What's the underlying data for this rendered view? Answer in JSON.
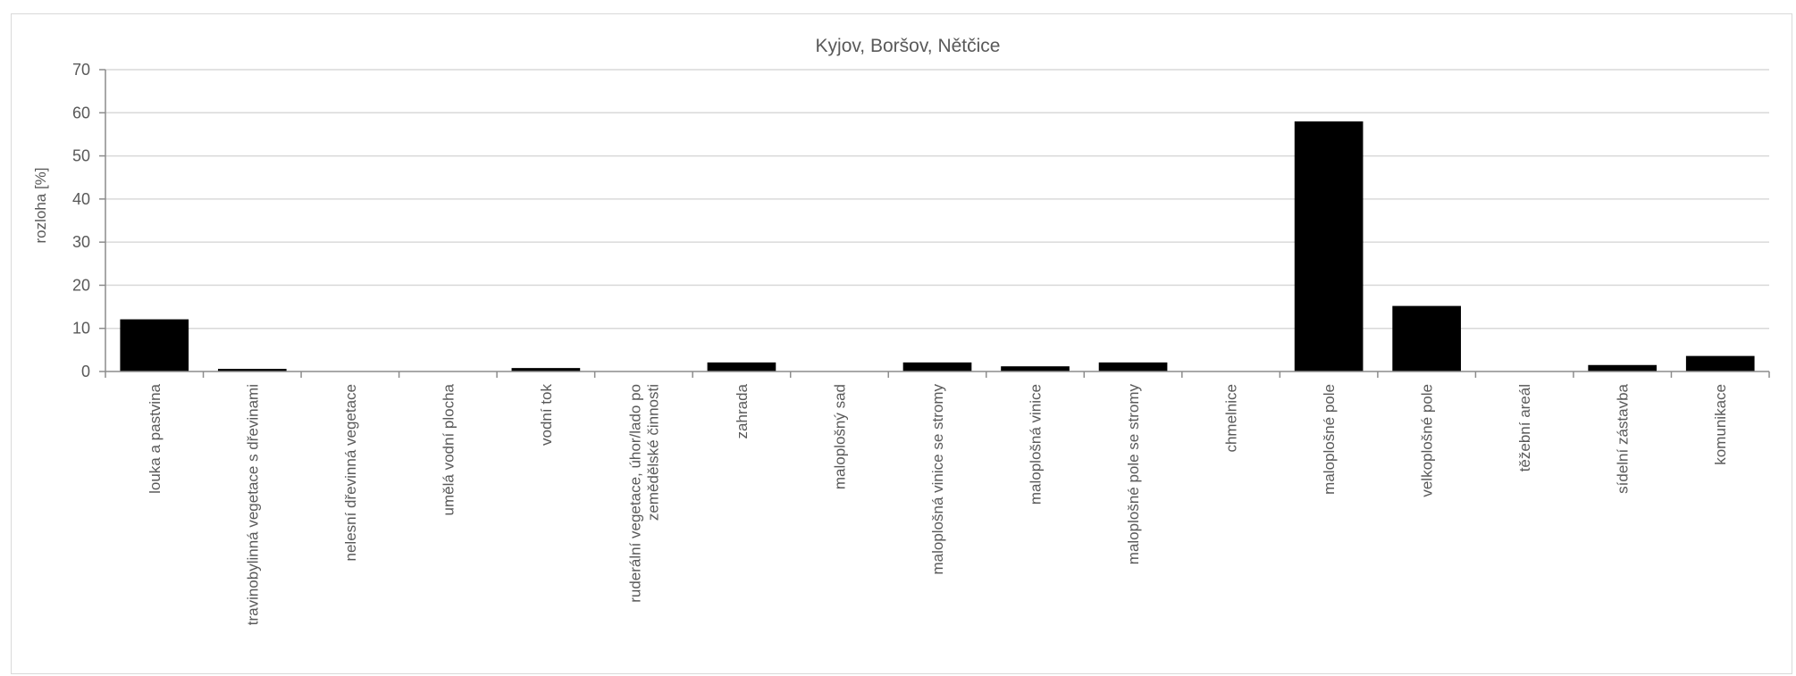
{
  "chart_data": {
    "type": "bar",
    "title": "Kyjov, Boršov, Nětčice",
    "xlabel": "",
    "ylabel": "rozloha [%]",
    "ylim": [
      0,
      70
    ],
    "yticks": [
      0,
      10,
      20,
      30,
      40,
      50,
      60,
      70
    ],
    "grid": true,
    "legend": "none",
    "bar_color": "#000000",
    "grid_color": "#d9d9d9",
    "categories": [
      [
        "louka a pastvina"
      ],
      [
        "travinobylinná vegetace s dřevinami"
      ],
      [
        "nelesní dřevinná vegetace"
      ],
      [
        "umělá vodní plocha"
      ],
      [
        "vodní tok"
      ],
      [
        "ruderální vegetace, úhor/lado po",
        "zemědělské činnosti"
      ],
      [
        "zahrada"
      ],
      [
        "maloplošný sad"
      ],
      [
        "maloplošná vinice se stromy"
      ],
      [
        "maloplošná vinice"
      ],
      [
        "maloplošné pole se stromy"
      ],
      [
        "chmelnice"
      ],
      [
        "maloplošné pole"
      ],
      [
        "velkoplošné pole"
      ],
      [
        "těžební areál"
      ],
      [
        "sídelní zástavba"
      ],
      [
        "komunikace"
      ]
    ],
    "values": [
      12.1,
      0.6,
      0.0,
      0.0,
      0.8,
      0.0,
      2.1,
      0.0,
      2.1,
      1.2,
      2.1,
      0.0,
      58.0,
      15.2,
      0.0,
      1.5,
      3.6
    ]
  }
}
